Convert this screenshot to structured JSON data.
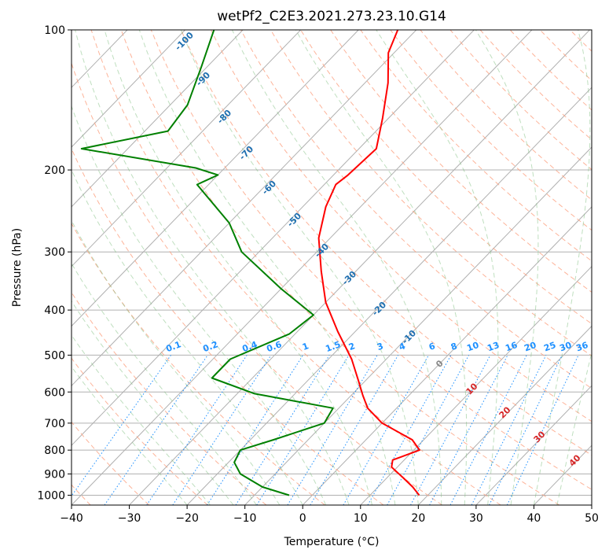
{
  "chart_data": {
    "type": "line",
    "title": "wetPf2_C2E3.2021.273.23.10.G14",
    "xlabel": "Temperature (°C)",
    "ylabel": "Pressure (hPa)",
    "xlim": [
      -40,
      50
    ],
    "ylim": [
      1050,
      100
    ],
    "x_ticks": [
      "−40",
      "−30",
      "−20",
      "−10",
      "0",
      "10",
      "20",
      "30",
      "40",
      "50"
    ],
    "y_ticks": [
      "100",
      "200",
      "300",
      "400",
      "500",
      "600",
      "700",
      "800",
      "900",
      "1000"
    ],
    "y_tick_values": [
      100,
      200,
      300,
      400,
      500,
      600,
      700,
      800,
      900,
      1000
    ],
    "series": [
      {
        "name": "temperature",
        "color": "#ff0000",
        "points": [
          [
            -63.2,
            100
          ],
          [
            -61,
            112
          ],
          [
            -56,
            130
          ],
          [
            -51,
            155
          ],
          [
            -47,
            180
          ],
          [
            -47.5,
            205
          ],
          [
            -48,
            215
          ],
          [
            -46,
            240
          ],
          [
            -42,
            280
          ],
          [
            -36,
            330
          ],
          [
            -30,
            385
          ],
          [
            -23,
            445
          ],
          [
            -16,
            510
          ],
          [
            -11,
            570
          ],
          [
            -8,
            610
          ],
          [
            -5,
            650
          ],
          [
            0,
            700
          ],
          [
            8,
            760
          ],
          [
            11,
            800
          ],
          [
            8,
            840
          ],
          [
            9,
            870
          ],
          [
            13,
            920
          ],
          [
            16,
            960
          ],
          [
            18.5,
            1000
          ]
        ]
      },
      {
        "name": "dewpoint",
        "color": "#008000",
        "points": [
          [
            -95,
            100
          ],
          [
            -91,
            120
          ],
          [
            -87,
            145
          ],
          [
            -86,
            165
          ],
          [
            -98,
            180
          ],
          [
            -75,
            198
          ],
          [
            -70,
            205
          ],
          [
            -72,
            215
          ],
          [
            -60,
            260
          ],
          [
            -53,
            300
          ],
          [
            -40,
            360
          ],
          [
            -30,
            410
          ],
          [
            -31,
            450
          ],
          [
            -37,
            510
          ],
          [
            -37,
            560
          ],
          [
            -27,
            605
          ],
          [
            -11,
            650
          ],
          [
            -10,
            700
          ],
          [
            -16,
            760
          ],
          [
            -20,
            800
          ],
          [
            -19,
            850
          ],
          [
            -16,
            900
          ],
          [
            -10,
            960
          ],
          [
            -4,
            1000
          ]
        ]
      }
    ],
    "dry_adiabat_labels": [
      "-100",
      "-90",
      "-80",
      "-70",
      "-60",
      "-50",
      "-40",
      "-30",
      "-20",
      "-10",
      "0",
      "10",
      "20",
      "30",
      "40"
    ],
    "moist_adiabat_labels": [],
    "mixing_ratio_labels": [
      "0.1",
      "0.2",
      "0.4",
      "0.6",
      "1",
      "1.5",
      "2",
      "3",
      "4",
      "6",
      "8",
      "10",
      "13",
      "16",
      "20",
      "25",
      "30",
      "36"
    ]
  }
}
